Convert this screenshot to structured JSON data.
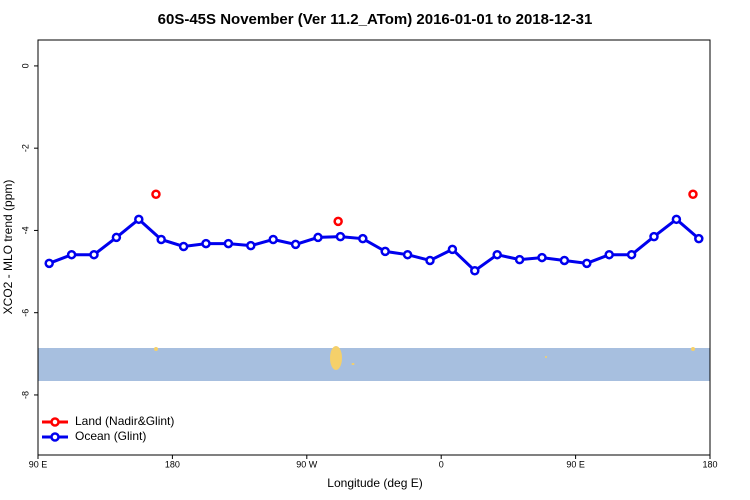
{
  "chart_data": {
    "type": "line",
    "title": "60S-45S November (Ver 11.2_ATom)   2016-01-01 to 2018-12-31",
    "x_label": "Longitude (deg E)",
    "y_label": "XCO2 - MLO trend (ppm)",
    "xlim": [
      90,
      540
    ],
    "xticks": [
      {
        "value": 90,
        "label": "90 E"
      },
      {
        "value": 180,
        "label": "180"
      },
      {
        "value": 270,
        "label": "90 W"
      },
      {
        "value": 360,
        "label": "0"
      },
      {
        "value": 450,
        "label": "90 E"
      },
      {
        "value": 540,
        "label": "180"
      }
    ],
    "ylim": [
      -9.46,
      0.63
    ],
    "yticks": [
      0,
      -2,
      -4,
      -6,
      -8
    ],
    "legend": "bottom-left",
    "series": [
      {
        "name": "Land (Nadir&Glint)",
        "color": "#ff0000",
        "connected": false,
        "x": [
          169,
          291,
          528.6
        ],
        "values": [
          -3.12,
          -3.78,
          -3.12
        ]
      },
      {
        "name": "Ocean (Glint)",
        "color": "#0000ee",
        "connected": true,
        "x": [
          97.5,
          112.5,
          127.5,
          142.5,
          157.5,
          172.5,
          187.5,
          202.5,
          217.5,
          232.5,
          247.5,
          262.5,
          277.5,
          292.5,
          307.5,
          322.5,
          337.5,
          352.5,
          367.5,
          382.5,
          397.5,
          412.5,
          427.5,
          442.5,
          457.5,
          472.5,
          487.5,
          502.5,
          517.5,
          532.5
        ],
        "values": [
          -4.8,
          -4.59,
          -4.59,
          -4.17,
          -3.73,
          -4.22,
          -4.39,
          -4.32,
          -4.32,
          -4.37,
          -4.22,
          -4.34,
          -4.17,
          -4.15,
          -4.2,
          -4.51,
          -4.59,
          -4.73,
          -4.46,
          -4.98,
          -4.59,
          -4.71,
          -4.66,
          -4.73,
          -4.8,
          -4.59,
          -4.59,
          -4.15,
          -3.73,
          -4.2
        ]
      }
    ]
  }
}
